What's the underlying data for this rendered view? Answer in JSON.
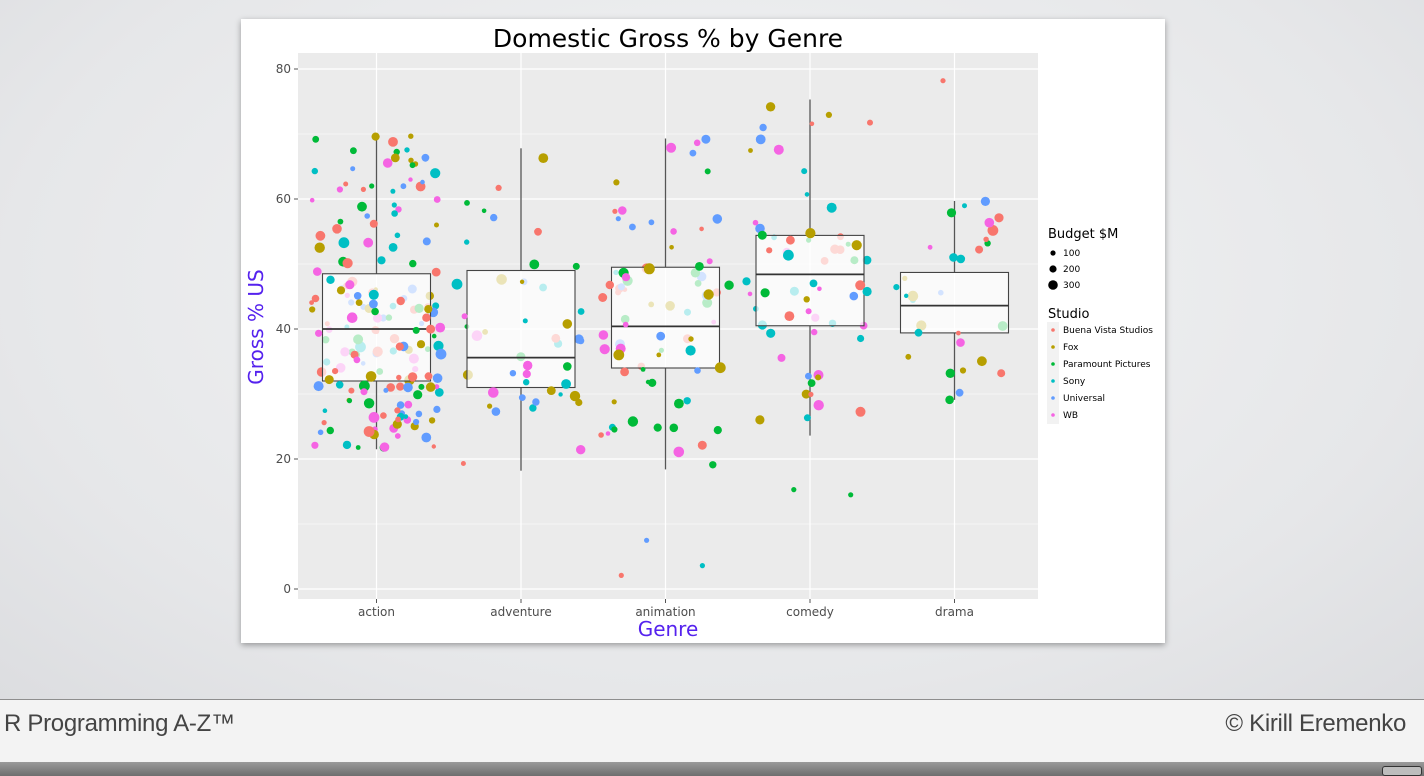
{
  "footer": {
    "course": "R Programming A-Z™",
    "author": "© Kirill Eremenko"
  },
  "chart_data": {
    "type": "boxplot-jitter",
    "title": "Domestic Gross % by Genre",
    "xlabel": "Genre",
    "ylabel": "Gross % US",
    "ylim": [
      0,
      80
    ],
    "yticks": [
      0,
      20,
      40,
      60,
      80
    ],
    "categories": [
      "action",
      "adventure",
      "animation",
      "comedy",
      "drama"
    ],
    "boxes": [
      {
        "category": "action",
        "min": 21.5,
        "q1": 32.0,
        "median": 40.0,
        "q3": 48.5,
        "max": 69.7
      },
      {
        "category": "adventure",
        "min": 18.2,
        "q1": 31.0,
        "median": 35.6,
        "q3": 49.0,
        "max": 67.8
      },
      {
        "category": "animation",
        "min": 18.4,
        "q1": 34.0,
        "median": 40.4,
        "q3": 49.5,
        "max": 69.3
      },
      {
        "category": "comedy",
        "min": 23.6,
        "q1": 40.5,
        "median": 48.4,
        "q3": 54.4,
        "max": 75.3
      },
      {
        "category": "drama",
        "min": 29.1,
        "q1": 39.4,
        "median": 43.6,
        "q3": 48.7,
        "max": 59.7
      }
    ],
    "legend_size": {
      "title": "Budget $M",
      "entries": [
        "100",
        "200",
        "300"
      ]
    },
    "legend_color": {
      "title": "Studio",
      "entries": [
        {
          "name": "Buena Vista Studios",
          "color": "#F8766D"
        },
        {
          "name": "Fox",
          "color": "#B79F00"
        },
        {
          "name": "Paramount Pictures",
          "color": "#00BA38"
        },
        {
          "name": "Sony",
          "color": "#00BFC4"
        },
        {
          "name": "Universal",
          "color": "#619CFF"
        },
        {
          "name": "WB",
          "color": "#F564E3"
        }
      ]
    },
    "points_per_category": [
      180,
      45,
      75,
      60,
      30
    ],
    "outlier_examples": [
      {
        "category": "animation",
        "y": 7.5
      },
      {
        "category": "animation",
        "y": 3.6
      },
      {
        "category": "animation",
        "y": 2.1
      },
      {
        "category": "comedy",
        "y": 15.3
      },
      {
        "category": "comedy",
        "y": 14.5
      },
      {
        "category": "drama",
        "y": 78.2
      }
    ]
  }
}
